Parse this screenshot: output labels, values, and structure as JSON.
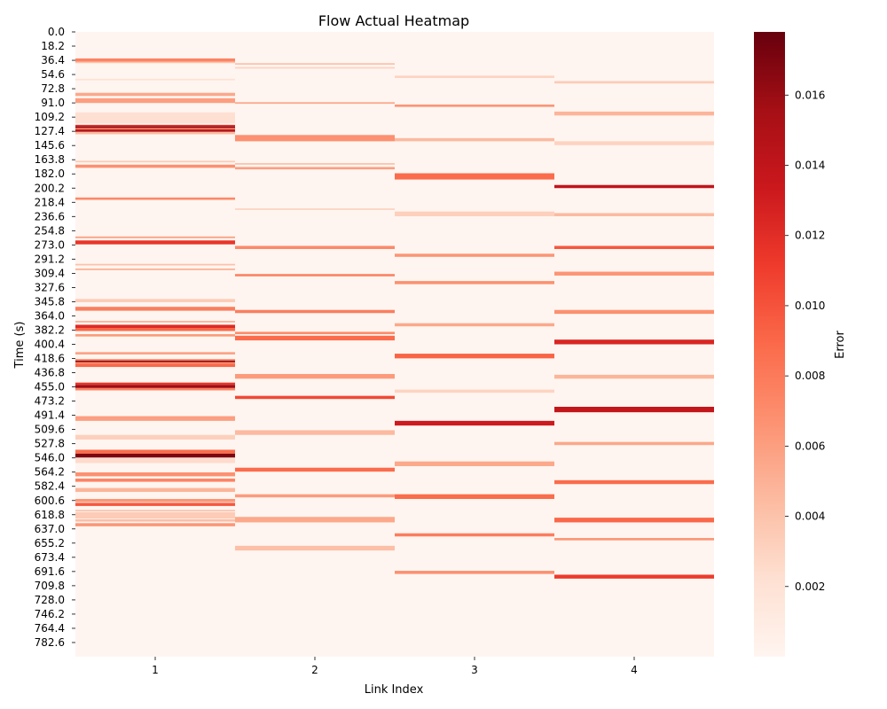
{
  "chart_data": {
    "type": "heatmap",
    "title": "Flow Actual Heatmap",
    "xlabel": "Link Index",
    "ylabel": "Time (s)",
    "x_categories": [
      "1",
      "2",
      "3",
      "4"
    ],
    "y_tick_labels": [
      "0.0",
      "18.2",
      "36.4",
      "54.6",
      "72.8",
      "91.0",
      "109.2",
      "127.4",
      "145.6",
      "163.8",
      "182.0",
      "200.2",
      "218.4",
      "236.6",
      "254.8",
      "273.0",
      "291.2",
      "309.4",
      "327.6",
      "345.8",
      "364.0",
      "382.2",
      "400.4",
      "418.6",
      "436.8",
      "455.0",
      "473.2",
      "491.4",
      "509.6",
      "527.8",
      "546.0",
      "564.2",
      "582.4",
      "600.6",
      "618.8",
      "637.0",
      "655.2",
      "673.4",
      "691.6",
      "709.8",
      "728.0",
      "746.2",
      "764.4",
      "782.6"
    ],
    "y_range": [
      0,
      800
    ],
    "colorbar": {
      "label": "Error",
      "range": [
        0,
        0.0178
      ],
      "ticks": [
        "0.002",
        "0.004",
        "0.006",
        "0.008",
        "0.010",
        "0.012",
        "0.014",
        "0.016"
      ],
      "tick_values": [
        0.002,
        0.004,
        0.006,
        0.008,
        0.01,
        0.012,
        0.014,
        0.016
      ],
      "colormap": "Reds",
      "stops": [
        "#fff5f0",
        "#fee0d2",
        "#fcbba1",
        "#fc9272",
        "#fb6a4a",
        "#ef3b2c",
        "#cb181d",
        "#a50f15",
        "#67000d"
      ]
    },
    "grid": false,
    "series": [
      {
        "x": "1",
        "bands": [
          {
            "t": [
              34,
              38
            ],
            "v": 0.0075
          },
          {
            "t": [
              38,
              40
            ],
            "v": 0.004
          },
          {
            "t": [
              60,
              62
            ],
            "v": 0.002
          },
          {
            "t": [
              78,
              82
            ],
            "v": 0.0055
          },
          {
            "t": [
              85,
              91
            ],
            "v": 0.006
          },
          {
            "t": [
              103,
              117
            ],
            "v": 0.0022
          },
          {
            "t": [
              119,
              121
            ],
            "v": 0.012
          },
          {
            "t": [
              121,
              123
            ],
            "v": 0.0165
          },
          {
            "t": [
              123,
              125
            ],
            "v": 0.008
          },
          {
            "t": [
              125,
              128
            ],
            "v": 0.015
          },
          {
            "t": [
              128,
              131
            ],
            "v": 0.0045
          },
          {
            "t": [
              165,
              167
            ],
            "v": 0.0035
          },
          {
            "t": [
              170,
              174
            ],
            "v": 0.0068
          },
          {
            "t": [
              212,
              215
            ],
            "v": 0.0072
          },
          {
            "t": [
              262,
              264
            ],
            "v": 0.006
          },
          {
            "t": [
              267,
              272
            ],
            "v": 0.0115
          },
          {
            "t": [
              297,
              299
            ],
            "v": 0.004
          },
          {
            "t": [
              303,
              305
            ],
            "v": 0.005
          },
          {
            "t": [
              342,
              346
            ],
            "v": 0.0035
          },
          {
            "t": [
              352,
              357
            ],
            "v": 0.0078
          },
          {
            "t": [
              370,
              372
            ],
            "v": 0.005
          },
          {
            "t": [
              375,
              379
            ],
            "v": 0.0122
          },
          {
            "t": [
              379,
              383
            ],
            "v": 0.009
          },
          {
            "t": [
              387,
              390
            ],
            "v": 0.0062
          },
          {
            "t": [
              410,
              413
            ],
            "v": 0.0058
          },
          {
            "t": [
              419,
              421
            ],
            "v": 0.008
          },
          {
            "t": [
              421,
              423
            ],
            "v": 0.0165
          },
          {
            "t": [
              423,
              425
            ],
            "v": 0.007
          },
          {
            "t": [
              425,
              429
            ],
            "v": 0.009
          },
          {
            "t": [
              449,
              452
            ],
            "v": 0.0115
          },
          {
            "t": [
              452,
              456
            ],
            "v": 0.0158
          },
          {
            "t": [
              456,
              459
            ],
            "v": 0.0075
          },
          {
            "t": [
              492,
              498
            ],
            "v": 0.006
          },
          {
            "t": [
              516,
              522
            ],
            "v": 0.0032
          },
          {
            "t": [
              535,
              540
            ],
            "v": 0.0088
          },
          {
            "t": [
              540,
              545
            ],
            "v": 0.017
          },
          {
            "t": [
              546,
              552
            ],
            "v": 0.0025
          },
          {
            "t": [
              564,
              569
            ],
            "v": 0.0068
          },
          {
            "t": [
              572,
              576
            ],
            "v": 0.0075
          },
          {
            "t": [
              584,
              589
            ],
            "v": 0.0048
          },
          {
            "t": [
              598,
              602
            ],
            "v": 0.0065
          },
          {
            "t": [
              603,
              607
            ],
            "v": 0.0098
          },
          {
            "t": [
              612,
              614
            ],
            "v": 0.004
          },
          {
            "t": [
              615,
              623
            ],
            "v": 0.0035
          },
          {
            "t": [
              624,
              627
            ],
            "v": 0.0042
          },
          {
            "t": [
              629,
              633
            ],
            "v": 0.0065
          }
        ]
      },
      {
        "x": "2",
        "bands": [
          {
            "t": [
              40,
              42
            ],
            "v": 0.004
          },
          {
            "t": [
              45,
              47
            ],
            "v": 0.003
          },
          {
            "t": [
              90,
              92
            ],
            "v": 0.0055
          },
          {
            "t": [
              132,
              140
            ],
            "v": 0.0068
          },
          {
            "t": [
              168,
              170
            ],
            "v": 0.004
          },
          {
            "t": [
              173,
              176
            ],
            "v": 0.006
          },
          {
            "t": [
              226,
              228
            ],
            "v": 0.003
          },
          {
            "t": [
              274,
              278
            ],
            "v": 0.0072
          },
          {
            "t": [
              310,
              313
            ],
            "v": 0.0075
          },
          {
            "t": [
              356,
              360
            ],
            "v": 0.0078
          },
          {
            "t": [
              384,
              387
            ],
            "v": 0.007
          },
          {
            "t": [
              389,
              395
            ],
            "v": 0.0088
          },
          {
            "t": [
              438,
              444
            ],
            "v": 0.0062
          },
          {
            "t": [
              466,
              470
            ],
            "v": 0.0105
          },
          {
            "t": [
              510,
              516
            ],
            "v": 0.0045
          },
          {
            "t": [
              558,
              563
            ],
            "v": 0.0088
          },
          {
            "t": [
              592,
              596
            ],
            "v": 0.0062
          },
          {
            "t": [
              621,
              628
            ],
            "v": 0.0055
          },
          {
            "t": [
              658,
              664
            ],
            "v": 0.0042
          }
        ]
      },
      {
        "x": "3",
        "bands": [
          {
            "t": [
              56,
              59
            ],
            "v": 0.003
          },
          {
            "t": [
              93,
              96
            ],
            "v": 0.0065
          },
          {
            "t": [
              136,
              140
            ],
            "v": 0.0045
          },
          {
            "t": [
              181,
              189
            ],
            "v": 0.0088
          },
          {
            "t": [
              230,
              236
            ],
            "v": 0.0032
          },
          {
            "t": [
              284,
              288
            ],
            "v": 0.0065
          },
          {
            "t": [
              319,
              323
            ],
            "v": 0.0068
          },
          {
            "t": [
              373,
              377
            ],
            "v": 0.0055
          },
          {
            "t": [
              412,
              418
            ],
            "v": 0.0092
          },
          {
            "t": [
              458,
              462
            ],
            "v": 0.003
          },
          {
            "t": [
              498,
              504
            ],
            "v": 0.0132
          },
          {
            "t": [
              550,
              556
            ],
            "v": 0.0055
          },
          {
            "t": [
              592,
              598
            ],
            "v": 0.0088
          },
          {
            "t": [
              642,
              646
            ],
            "v": 0.0078
          },
          {
            "t": [
              690,
              694
            ],
            "v": 0.0068
          }
        ]
      },
      {
        "x": "4",
        "bands": [
          {
            "t": [
              63,
              66
            ],
            "v": 0.0035
          },
          {
            "t": [
              102,
              107
            ],
            "v": 0.0048
          },
          {
            "t": [
              140,
              145
            ],
            "v": 0.003
          },
          {
            "t": [
              196,
              200
            ],
            "v": 0.014
          },
          {
            "t": [
              232,
              236
            ],
            "v": 0.0045
          },
          {
            "t": [
              274,
              278
            ],
            "v": 0.0098
          },
          {
            "t": [
              307,
              312
            ],
            "v": 0.0065
          },
          {
            "t": [
              356,
              361
            ],
            "v": 0.0068
          },
          {
            "t": [
              394,
              400
            ],
            "v": 0.0125
          },
          {
            "t": [
              439,
              444
            ],
            "v": 0.0048
          },
          {
            "t": [
              480,
              487
            ],
            "v": 0.0138
          },
          {
            "t": [
              525,
              529
            ],
            "v": 0.0055
          },
          {
            "t": [
              574,
              579
            ],
            "v": 0.0088
          },
          {
            "t": [
              622,
              628
            ],
            "v": 0.009
          },
          {
            "t": [
              648,
              651
            ],
            "v": 0.0065
          },
          {
            "t": [
              695,
              700
            ],
            "v": 0.0112
          }
        ]
      }
    ]
  }
}
